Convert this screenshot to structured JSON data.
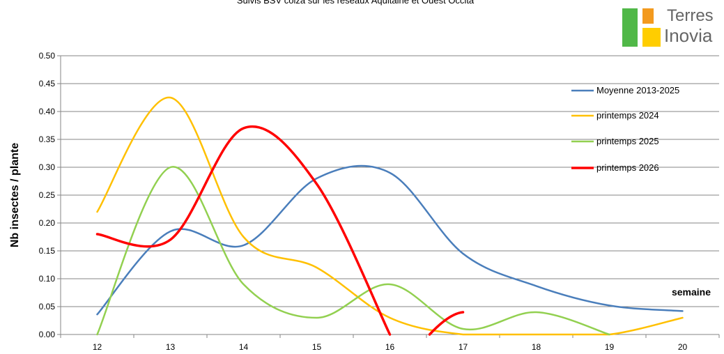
{
  "chart_data": {
    "type": "line",
    "title": "Suivis BSV colza sur les réseaux Aquitaine et Ouest Occita",
    "ylabel": "Nb insectes / plante",
    "xlabel": "semaine",
    "ylim": [
      0,
      0.5
    ],
    "yticks": [
      "0.00",
      "0.05",
      "0.10",
      "0.15",
      "0.20",
      "0.25",
      "0.30",
      "0.35",
      "0.40",
      "0.45",
      "0.50"
    ],
    "categories": [
      "12",
      "13",
      "14",
      "15",
      "16",
      "17",
      "18",
      "19",
      "20"
    ],
    "grid": true,
    "legend_position": "right",
    "series": [
      {
        "name": "Moyenne 2013-2025",
        "color": "#4a7ebb",
        "values": [
          0.036,
          0.185,
          0.16,
          0.28,
          0.29,
          0.145,
          0.087,
          0.052,
          0.042
        ]
      },
      {
        "name": "printemps 2024",
        "color": "#ffc000",
        "values": [
          0.22,
          0.425,
          0.175,
          0.12,
          0.03,
          0.0,
          0.0,
          0.0,
          0.03
        ]
      },
      {
        "name": "printemps 2025",
        "color": "#92d050",
        "values": [
          0.0,
          0.3,
          0.09,
          0.03,
          0.09,
          0.01,
          0.04,
          0.0,
          null
        ]
      },
      {
        "name": "printemps 2026",
        "color": "#ff0000",
        "values": [
          0.18,
          0.17,
          0.37,
          0.27,
          0.0,
          null,
          null,
          null,
          null
        ]
      },
      {
        "name": "",
        "color": "#ff0000",
        "values": [
          null,
          null,
          null,
          null,
          null,
          0.04,
          null,
          null,
          null
        ]
      }
    ]
  },
  "logo": {
    "line1": "Terres",
    "line2": "Inovia"
  }
}
